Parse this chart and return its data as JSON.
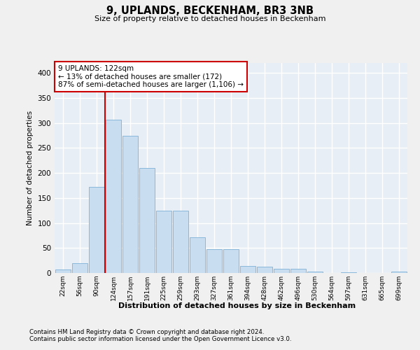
{
  "title": "9, UPLANDS, BECKENHAM, BR3 3NB",
  "subtitle": "Size of property relative to detached houses in Beckenham",
  "xlabel": "Distribution of detached houses by size in Beckenham",
  "ylabel": "Number of detached properties",
  "categories": [
    "22sqm",
    "56sqm",
    "90sqm",
    "124sqm",
    "157sqm",
    "191sqm",
    "225sqm",
    "259sqm",
    "293sqm",
    "327sqm",
    "361sqm",
    "394sqm",
    "428sqm",
    "462sqm",
    "496sqm",
    "530sqm",
    "564sqm",
    "597sqm",
    "631sqm",
    "665sqm",
    "699sqm"
  ],
  "values": [
    7,
    20,
    172,
    307,
    275,
    210,
    125,
    125,
    72,
    47,
    47,
    14,
    13,
    8,
    8,
    3,
    0,
    2,
    0,
    0,
    3
  ],
  "bar_color": "#c9ddf0",
  "bar_edge_color": "#88b8dc",
  "fig_bg_color": "#f0f0f0",
  "ax_bg_color": "#e8eef5",
  "grid_color": "#ffffff",
  "annotation_text": "9 UPLANDS: 122sqm\n← 13% of detached houses are smaller (172)\n87% of semi-detached houses are larger (1,106) →",
  "vline_color": "#cc0000",
  "vline_x_index": 3,
  "ylim": [
    0,
    420
  ],
  "yticks": [
    0,
    50,
    100,
    150,
    200,
    250,
    300,
    350,
    400
  ],
  "footer1": "Contains HM Land Registry data © Crown copyright and database right 2024.",
  "footer2": "Contains public sector information licensed under the Open Government Licence v3.0."
}
